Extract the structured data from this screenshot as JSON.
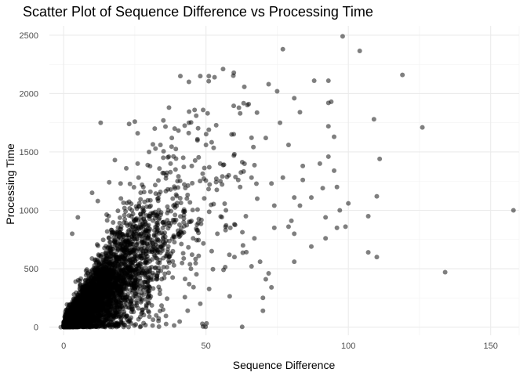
{
  "chart_data": {
    "type": "scatter",
    "title": "Scatter Plot of Sequence Difference vs Processing Time",
    "xlabel": "Sequence Difference",
    "ylabel": "Processing Time",
    "xlim": [
      -5,
      160
    ],
    "ylim": [
      -70,
      2580
    ],
    "x_ticks": [
      0,
      50,
      100,
      150
    ],
    "y_ticks": [
      0,
      500,
      1000,
      1500,
      2000,
      2500
    ],
    "grid": true,
    "point_color": "#000000",
    "point_alpha": 0.5,
    "points": [
      [
        98,
        2490
      ],
      [
        77,
        2380
      ],
      [
        104,
        2365
      ],
      [
        56,
        2210
      ],
      [
        119,
        2160
      ],
      [
        41,
        2150
      ],
      [
        51,
        2150
      ],
      [
        44,
        2100
      ],
      [
        48,
        2150
      ],
      [
        53,
        2140
      ],
      [
        72,
        2080
      ],
      [
        88,
        2110
      ],
      [
        93,
        2110
      ],
      [
        75,
        2020
      ],
      [
        94,
        1930
      ],
      [
        93,
        1920
      ],
      [
        65,
        1910
      ],
      [
        81,
        1960
      ],
      [
        37,
        1880
      ],
      [
        126,
        1710
      ],
      [
        13,
        1750
      ],
      [
        25,
        1760
      ],
      [
        23,
        1740
      ],
      [
        49,
        1860
      ],
      [
        46,
        1860
      ],
      [
        76,
        1750
      ],
      [
        83,
        1840
      ],
      [
        62,
        1830
      ],
      [
        93,
        1720
      ],
      [
        109,
        1780
      ],
      [
        26,
        1660
      ],
      [
        59,
        1650
      ],
      [
        51,
        1690
      ],
      [
        71,
        1620
      ],
      [
        79,
        1560
      ],
      [
        95,
        1630
      ],
      [
        18,
        1430
      ],
      [
        111,
        1440
      ],
      [
        93,
        1460
      ],
      [
        84,
        1380
      ],
      [
        90,
        1400
      ],
      [
        95,
        1340
      ],
      [
        84,
        1260
      ],
      [
        77,
        1280
      ],
      [
        96,
        1200
      ],
      [
        91,
        1190
      ],
      [
        73,
        1230
      ],
      [
        81,
        1110
      ],
      [
        87,
        1110
      ],
      [
        110,
        1120
      ],
      [
        100,
        1060
      ],
      [
        83,
        1040
      ],
      [
        74,
        1040
      ],
      [
        97,
        1000
      ],
      [
        158,
        1000
      ],
      [
        107,
        950
      ],
      [
        92,
        940
      ],
      [
        80,
        910
      ],
      [
        79,
        860
      ],
      [
        74,
        850
      ],
      [
        99,
        860
      ],
      [
        96,
        850
      ],
      [
        81,
        800
      ],
      [
        92,
        760
      ],
      [
        87,
        690
      ],
      [
        107,
        640
      ],
      [
        110,
        600
      ],
      [
        81,
        560
      ],
      [
        134,
        470
      ],
      [
        72,
        460
      ],
      [
        71,
        410
      ],
      [
        73,
        340
      ],
      [
        70,
        250
      ],
      [
        70,
        140
      ],
      [
        49,
        5
      ],
      [
        48,
        200
      ],
      [
        66,
        520
      ],
      [
        60,
        600
      ],
      [
        5,
        940
      ],
      [
        3,
        800
      ],
      [
        10,
        1150
      ],
      [
        12,
        1080
      ],
      [
        16,
        1240
      ],
      [
        20,
        1230
      ],
      [
        22,
        1360
      ],
      [
        30,
        1500
      ],
      [
        34,
        1560
      ],
      [
        38,
        1620
      ],
      [
        42,
        1450
      ],
      [
        45,
        1380
      ],
      [
        50,
        1560
      ],
      [
        55,
        1400
      ],
      [
        58,
        1300
      ],
      [
        62,
        1200
      ],
      [
        66,
        1280
      ],
      [
        68,
        1100
      ],
      [
        64,
        950
      ],
      [
        60,
        880
      ],
      [
        57,
        1000
      ],
      [
        54,
        800
      ],
      [
        52,
        650
      ],
      [
        63,
        700
      ],
      [
        67,
        760
      ],
      [
        69,
        560
      ],
      [
        40,
        1250
      ],
      [
        36,
        1300
      ],
      [
        33,
        1100
      ],
      [
        28,
        1200
      ],
      [
        26,
        1400
      ],
      [
        32,
        1700
      ],
      [
        44,
        1750
      ],
      [
        47,
        1600
      ],
      [
        39,
        1700
      ],
      [
        35,
        1450
      ],
      [
        24,
        1000
      ],
      [
        0,
        0
      ],
      [
        -1,
        0
      ],
      [
        1,
        10
      ]
    ]
  }
}
